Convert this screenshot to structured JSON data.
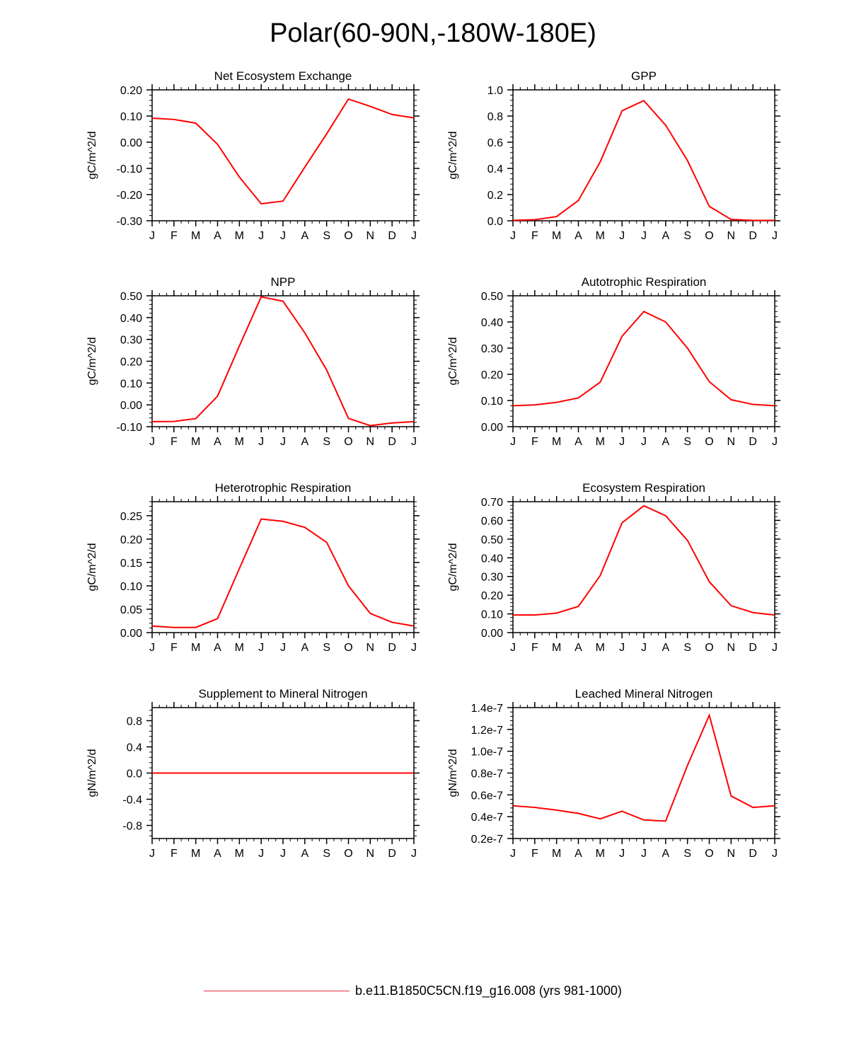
{
  "figure": {
    "title": "Polar(60-90N,-180W-180E)",
    "legend": {
      "label": "b.e11.B1850C5CN.f19_g16.008 (yrs 981-1000)",
      "color": "#e03040"
    },
    "line_color": "#ff0000"
  },
  "chart_data": [
    {
      "type": "line",
      "title": "Net Ecosystem Exchange",
      "ylabel": "gC/m^2/d",
      "categories": [
        "J",
        "F",
        "M",
        "A",
        "M",
        "J",
        "J",
        "A",
        "S",
        "O",
        "N",
        "D",
        "J"
      ],
      "ylim": [
        -0.3,
        0.2
      ],
      "yticks": [
        -0.3,
        -0.2,
        -0.1,
        0.0,
        0.1,
        0.2
      ],
      "ytick_labels": [
        "-0.30",
        "-0.20",
        "-0.10",
        "0.00",
        "0.10",
        "0.20"
      ],
      "values": [
        0.092,
        0.087,
        0.073,
        -0.008,
        -0.133,
        -0.235,
        -0.225,
        -0.095,
        0.032,
        0.165,
        0.137,
        0.106,
        0.093
      ]
    },
    {
      "type": "line",
      "title": "GPP",
      "ylabel": "gC/m^2/d",
      "categories": [
        "J",
        "F",
        "M",
        "A",
        "M",
        "J",
        "J",
        "A",
        "S",
        "O",
        "N",
        "D",
        "J"
      ],
      "ylim": [
        0.0,
        1.0
      ],
      "yticks": [
        0.0,
        0.2,
        0.4,
        0.6,
        0.8,
        1.0
      ],
      "ytick_labels": [
        "0.0",
        "0.2",
        "0.4",
        "0.6",
        "0.8",
        "1.0"
      ],
      "values": [
        0.003,
        0.008,
        0.032,
        0.155,
        0.45,
        0.84,
        0.918,
        0.73,
        0.46,
        0.11,
        0.01,
        0.003,
        0.003
      ]
    },
    {
      "type": "line",
      "title": "NPP",
      "ylabel": "gC/m^2/d",
      "categories": [
        "J",
        "F",
        "M",
        "A",
        "M",
        "J",
        "J",
        "A",
        "S",
        "O",
        "N",
        "D",
        "J"
      ],
      "ylim": [
        -0.1,
        0.5
      ],
      "yticks": [
        -0.1,
        0.0,
        0.1,
        0.2,
        0.3,
        0.4,
        0.5
      ],
      "ytick_labels": [
        "-0.10",
        "0.00",
        "0.10",
        "0.20",
        "0.30",
        "0.40",
        "0.50"
      ],
      "values": [
        -0.077,
        -0.076,
        -0.063,
        0.04,
        0.27,
        0.495,
        0.475,
        0.33,
        0.16,
        -0.062,
        -0.095,
        -0.083,
        -0.077
      ]
    },
    {
      "type": "line",
      "title": "Autotrophic Respiration",
      "ylabel": "gC/m^2/d",
      "categories": [
        "J",
        "F",
        "M",
        "A",
        "M",
        "J",
        "J",
        "A",
        "S",
        "O",
        "N",
        "D",
        "J"
      ],
      "ylim": [
        0.0,
        0.5
      ],
      "yticks": [
        0.0,
        0.1,
        0.2,
        0.3,
        0.4,
        0.5
      ],
      "ytick_labels": [
        "0.00",
        "0.10",
        "0.20",
        "0.30",
        "0.40",
        "0.50"
      ],
      "values": [
        0.08,
        0.083,
        0.093,
        0.11,
        0.17,
        0.345,
        0.44,
        0.4,
        0.3,
        0.172,
        0.103,
        0.085,
        0.08
      ]
    },
    {
      "type": "line",
      "title": "Heterotrophic Respiration",
      "ylabel": "gC/m^2/d",
      "categories": [
        "J",
        "F",
        "M",
        "A",
        "M",
        "J",
        "J",
        "A",
        "S",
        "O",
        "N",
        "D",
        "J"
      ],
      "ylim": [
        0.0,
        0.28
      ],
      "yticks": [
        0.0,
        0.05,
        0.1,
        0.15,
        0.2,
        0.25
      ],
      "ytick_labels": [
        "0.00",
        "0.05",
        "0.10",
        "0.15",
        "0.20",
        "0.25"
      ],
      "values": [
        0.014,
        0.011,
        0.011,
        0.03,
        0.137,
        0.243,
        0.238,
        0.225,
        0.193,
        0.1,
        0.041,
        0.022,
        0.014
      ]
    },
    {
      "type": "line",
      "title": "Ecosystem Respiration",
      "ylabel": "gC/m^2/d",
      "categories": [
        "J",
        "F",
        "M",
        "A",
        "M",
        "J",
        "J",
        "A",
        "S",
        "O",
        "N",
        "D",
        "J"
      ],
      "ylim": [
        0.0,
        0.7
      ],
      "yticks": [
        0.0,
        0.1,
        0.2,
        0.3,
        0.4,
        0.5,
        0.6,
        0.7
      ],
      "ytick_labels": [
        "0.00",
        "0.10",
        "0.20",
        "0.30",
        "0.40",
        "0.50",
        "0.60",
        "0.70"
      ],
      "values": [
        0.094,
        0.094,
        0.104,
        0.14,
        0.305,
        0.587,
        0.678,
        0.625,
        0.493,
        0.272,
        0.144,
        0.107,
        0.094
      ]
    },
    {
      "type": "line",
      "title": "Supplement to Mineral Nitrogen",
      "ylabel": "gN/m^2/d",
      "categories": [
        "J",
        "F",
        "M",
        "A",
        "M",
        "J",
        "J",
        "A",
        "S",
        "O",
        "N",
        "D",
        "J"
      ],
      "ylim": [
        -1.0,
        1.0
      ],
      "yticks": [
        -0.8,
        -0.4,
        0.0,
        0.4,
        0.8
      ],
      "ytick_labels": [
        "-0.8",
        "-0.4",
        "0.0",
        "0.4",
        "0.8"
      ],
      "values": [
        0,
        0,
        0,
        0,
        0,
        0,
        0,
        0,
        0,
        0,
        0,
        0,
        0
      ]
    },
    {
      "type": "line",
      "title": "Leached Mineral Nitrogen",
      "ylabel": "gN/m^2/d",
      "categories": [
        "J",
        "F",
        "M",
        "A",
        "M",
        "J",
        "J",
        "A",
        "S",
        "O",
        "N",
        "D",
        "J"
      ],
      "ylim": [
        2e-08,
        1.4e-07
      ],
      "yticks": [
        2e-08,
        4e-08,
        6e-08,
        8e-08,
        1e-07,
        1.2e-07,
        1.4e-07
      ],
      "ytick_labels": [
        "0.2e-7",
        "0.4e-7",
        "0.6e-7",
        "0.8e-7",
        "1.0e-7",
        "1.2e-7",
        "1.4e-7"
      ],
      "values": [
        5e-08,
        4.85e-08,
        4.6e-08,
        4.3e-08,
        3.8e-08,
        4.5e-08,
        3.7e-08,
        3.6e-08,
        8.7e-08,
        1.33e-07,
        5.9e-08,
        4.85e-08,
        5e-08
      ]
    }
  ]
}
